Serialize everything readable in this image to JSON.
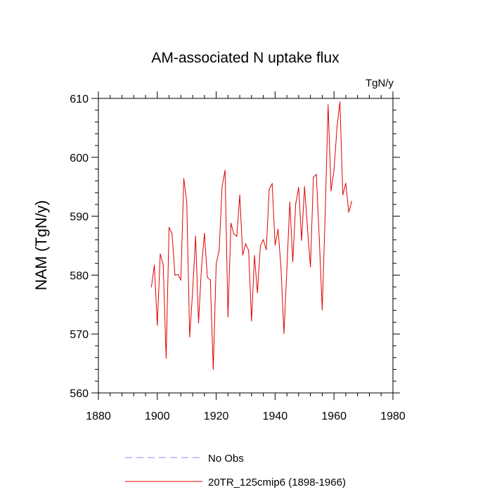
{
  "chart_data": {
    "type": "line",
    "title": "AM-associated N uptake flux",
    "units_label": "TgN/y",
    "ylabel": "NAM  (TgN/y)",
    "xlabel": "",
    "xlim": [
      1880,
      1980
    ],
    "ylim": [
      560,
      610
    ],
    "x_ticks": [
      1880,
      1900,
      1920,
      1940,
      1960,
      1980
    ],
    "y_ticks": [
      560,
      570,
      580,
      590,
      600,
      610
    ],
    "grid": false,
    "legend_position": "bottom",
    "series": [
      {
        "name": "No Obs",
        "color": "#8a8aff",
        "style": "dashed",
        "x": [],
        "values": []
      },
      {
        "name": "20TR_125cmip6 (1898-1966)",
        "color": "#e00000",
        "style": "solid",
        "x": [
          1898,
          1899,
          1900,
          1901,
          1902,
          1903,
          1904,
          1905,
          1906,
          1907,
          1908,
          1909,
          1910,
          1911,
          1912,
          1913,
          1914,
          1915,
          1916,
          1917,
          1918,
          1919,
          1920,
          1921,
          1922,
          1923,
          1924,
          1925,
          1926,
          1927,
          1928,
          1929,
          1930,
          1931,
          1932,
          1933,
          1934,
          1935,
          1936,
          1937,
          1938,
          1939,
          1940,
          1941,
          1942,
          1943,
          1944,
          1945,
          1946,
          1947,
          1948,
          1949,
          1950,
          1951,
          1952,
          1953,
          1954,
          1955,
          1956,
          1957,
          1958,
          1959,
          1960,
          1961,
          1962,
          1963,
          1964,
          1965,
          1966
        ],
        "values": [
          578.0,
          581.7,
          571.5,
          583.6,
          581.8,
          565.9,
          588.1,
          587.0,
          580.0,
          580.1,
          579.2,
          596.4,
          592.4,
          569.5,
          577.3,
          586.6,
          571.9,
          581.2,
          587.1,
          579.6,
          579.2,
          564.0,
          581.9,
          584.2,
          595.0,
          597.8,
          572.9,
          588.8,
          587.0,
          586.6,
          593.6,
          583.4,
          585.3,
          584.2,
          572.2,
          583.3,
          577.0,
          585.0,
          586.0,
          584.3,
          594.6,
          595.5,
          585.1,
          587.8,
          581.3,
          570.1,
          581.1,
          592.4,
          582.3,
          592.1,
          594.9,
          585.9,
          595.0,
          587.9,
          581.4,
          596.6,
          597.1,
          586.2,
          574.1,
          590.4,
          608.9,
          594.3,
          597.8,
          605.0,
          609.4,
          593.6,
          595.6,
          590.7,
          592.5
        ]
      }
    ]
  }
}
